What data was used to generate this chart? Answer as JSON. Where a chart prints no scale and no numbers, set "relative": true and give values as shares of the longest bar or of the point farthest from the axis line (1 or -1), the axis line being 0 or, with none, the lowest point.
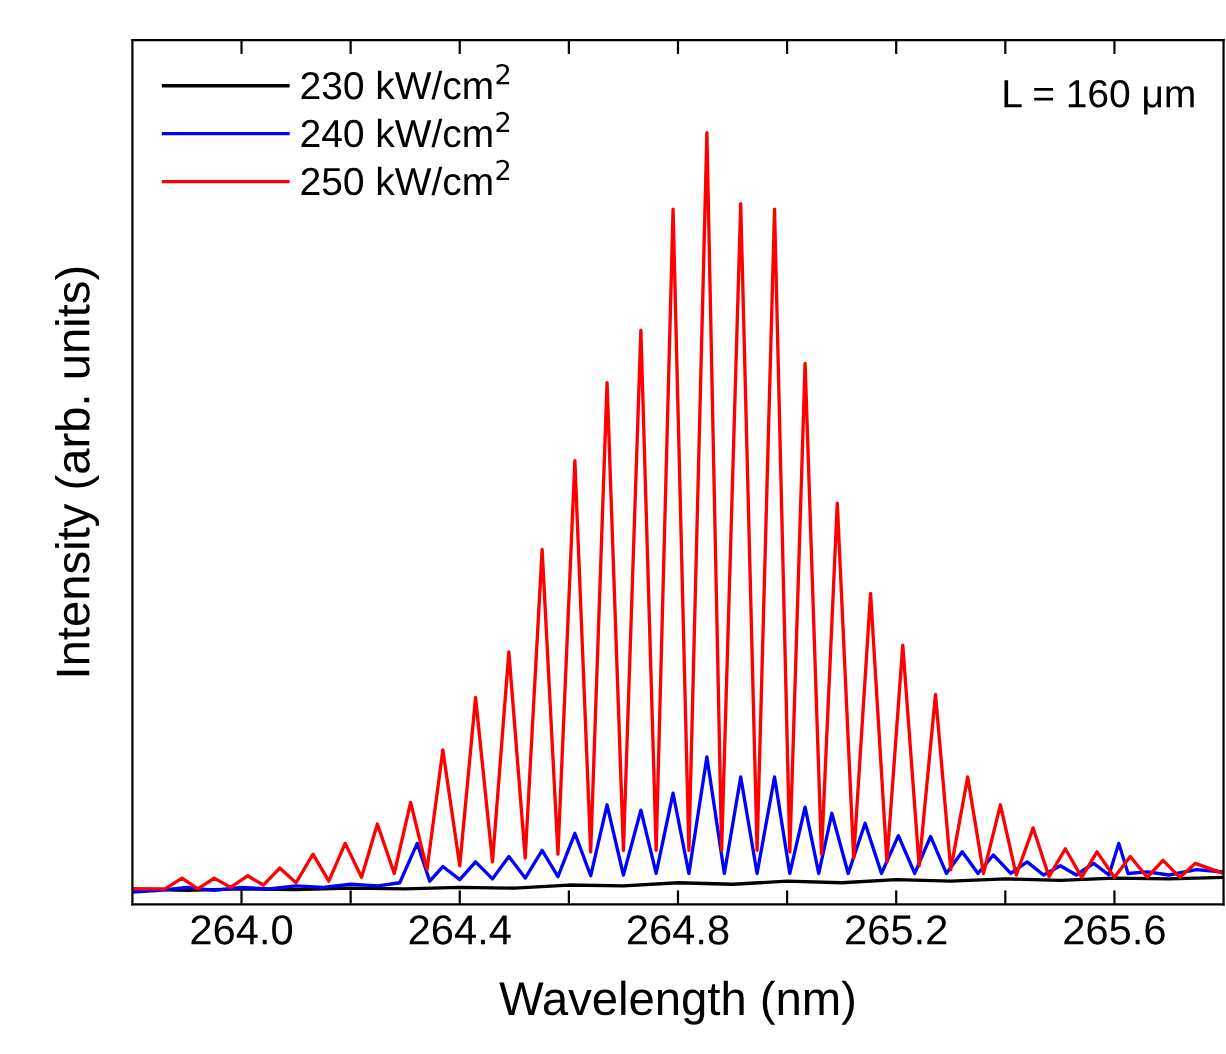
{
  "chart_data": {
    "type": "line",
    "xlabel": "Wavelength (nm)",
    "ylabel": "Intensity (arb. units)",
    "relative": true,
    "xlim": [
      263.8,
      265.8
    ],
    "xticks": [
      {
        "value": 264.0,
        "label": "264.0"
      },
      {
        "value": 264.2,
        "label": null
      },
      {
        "value": 264.4,
        "label": "264.4"
      },
      {
        "value": 264.6,
        "label": null
      },
      {
        "value": 264.8,
        "label": "264.8"
      },
      {
        "value": 265.0,
        "label": null
      },
      {
        "value": 265.2,
        "label": "265.2"
      },
      {
        "value": 265.4,
        "label": null
      },
      {
        "value": 265.6,
        "label": "265.6"
      }
    ],
    "grid": false,
    "legend": "top left",
    "marker": "none",
    "line_style": "solid",
    "annotations": [
      "L = 160 μm"
    ],
    "series": [
      {
        "name": "230 kW/cm$^{2}$",
        "color": "#000000",
        "x": [
          263.8,
          263.9,
          264.0,
          264.1,
          264.2,
          264.3,
          264.4,
          264.5,
          264.6,
          264.7,
          264.8,
          264.9,
          265.0,
          265.1,
          265.2,
          265.3,
          265.4,
          265.5,
          265.6,
          265.7,
          265.8
        ],
        "values": [
          0.02,
          0.018,
          0.02,
          0.019,
          0.021,
          0.02,
          0.022,
          0.021,
          0.025,
          0.024,
          0.028,
          0.026,
          0.03,
          0.028,
          0.032,
          0.03,
          0.033,
          0.031,
          0.034,
          0.033,
          0.035
        ]
      },
      {
        "name": "240 kW/cm$^{2}$",
        "color": "#0000ff",
        "x": [
          263.8,
          263.85,
          263.9,
          263.95,
          264.0,
          264.05,
          264.1,
          264.15,
          264.2,
          264.25,
          264.29,
          264.322,
          264.345,
          264.369,
          264.4,
          264.429,
          264.46,
          264.49,
          264.52,
          264.551,
          264.58,
          264.611,
          264.64,
          264.67,
          264.7,
          264.732,
          264.76,
          264.791,
          264.82,
          264.853,
          264.885,
          264.915,
          264.945,
          264.977,
          265.005,
          265.033,
          265.058,
          265.082,
          265.112,
          265.143,
          265.173,
          265.204,
          265.234,
          265.263,
          265.292,
          265.321,
          265.35,
          265.378,
          265.41,
          265.44,
          265.47,
          265.501,
          265.53,
          265.562,
          265.59,
          265.608,
          265.625,
          265.66,
          265.7,
          265.75,
          265.8
        ],
        "values": [
          0.016,
          0.018,
          0.022,
          0.018,
          0.022,
          0.02,
          0.024,
          0.022,
          0.026,
          0.024,
          0.028,
          0.079,
          0.03,
          0.049,
          0.032,
          0.055,
          0.033,
          0.062,
          0.034,
          0.07,
          0.036,
          0.092,
          0.037,
          0.129,
          0.038,
          0.122,
          0.04,
          0.144,
          0.04,
          0.191,
          0.04,
          0.165,
          0.04,
          0.165,
          0.04,
          0.126,
          0.04,
          0.118,
          0.04,
          0.105,
          0.04,
          0.089,
          0.04,
          0.088,
          0.04,
          0.068,
          0.04,
          0.064,
          0.04,
          0.055,
          0.038,
          0.05,
          0.038,
          0.053,
          0.038,
          0.079,
          0.04,
          0.042,
          0.038,
          0.045,
          0.042
        ]
      },
      {
        "name": "250 kW/cm$^{2}$",
        "color": "#ff0000",
        "x": [
          263.8,
          263.86,
          263.891,
          263.92,
          263.95,
          263.98,
          264.011,
          264.04,
          264.07,
          264.1,
          264.131,
          264.16,
          264.19,
          264.22,
          264.249,
          264.28,
          264.31,
          264.34,
          264.369,
          264.4,
          264.429,
          264.46,
          264.49,
          264.52,
          264.551,
          264.58,
          264.611,
          264.64,
          264.67,
          264.7,
          264.732,
          264.76,
          264.791,
          264.82,
          264.853,
          264.88,
          264.915,
          264.945,
          264.977,
          265.005,
          265.033,
          265.063,
          265.092,
          265.122,
          265.153,
          265.183,
          265.212,
          265.242,
          265.272,
          265.3,
          265.331,
          265.36,
          265.391,
          265.42,
          265.451,
          265.48,
          265.51,
          265.54,
          265.568,
          265.6,
          265.629,
          265.66,
          265.689,
          265.72,
          265.748,
          265.8
        ],
        "values": [
          0.02,
          0.02,
          0.034,
          0.02,
          0.034,
          0.022,
          0.037,
          0.025,
          0.047,
          0.028,
          0.065,
          0.03,
          0.079,
          0.035,
          0.104,
          0.04,
          0.132,
          0.045,
          0.2,
          0.05,
          0.268,
          0.055,
          0.327,
          0.06,
          0.46,
          0.065,
          0.575,
          0.068,
          0.676,
          0.07,
          0.744,
          0.07,
          0.901,
          0.07,
          1.0,
          0.07,
          0.908,
          0.07,
          0.901,
          0.068,
          0.701,
          0.065,
          0.52,
          0.06,
          0.403,
          0.055,
          0.336,
          0.05,
          0.272,
          0.045,
          0.165,
          0.04,
          0.129,
          0.038,
          0.099,
          0.036,
          0.072,
          0.035,
          0.068,
          0.035,
          0.062,
          0.035,
          0.057,
          0.035,
          0.053,
          0.04
        ]
      }
    ]
  }
}
